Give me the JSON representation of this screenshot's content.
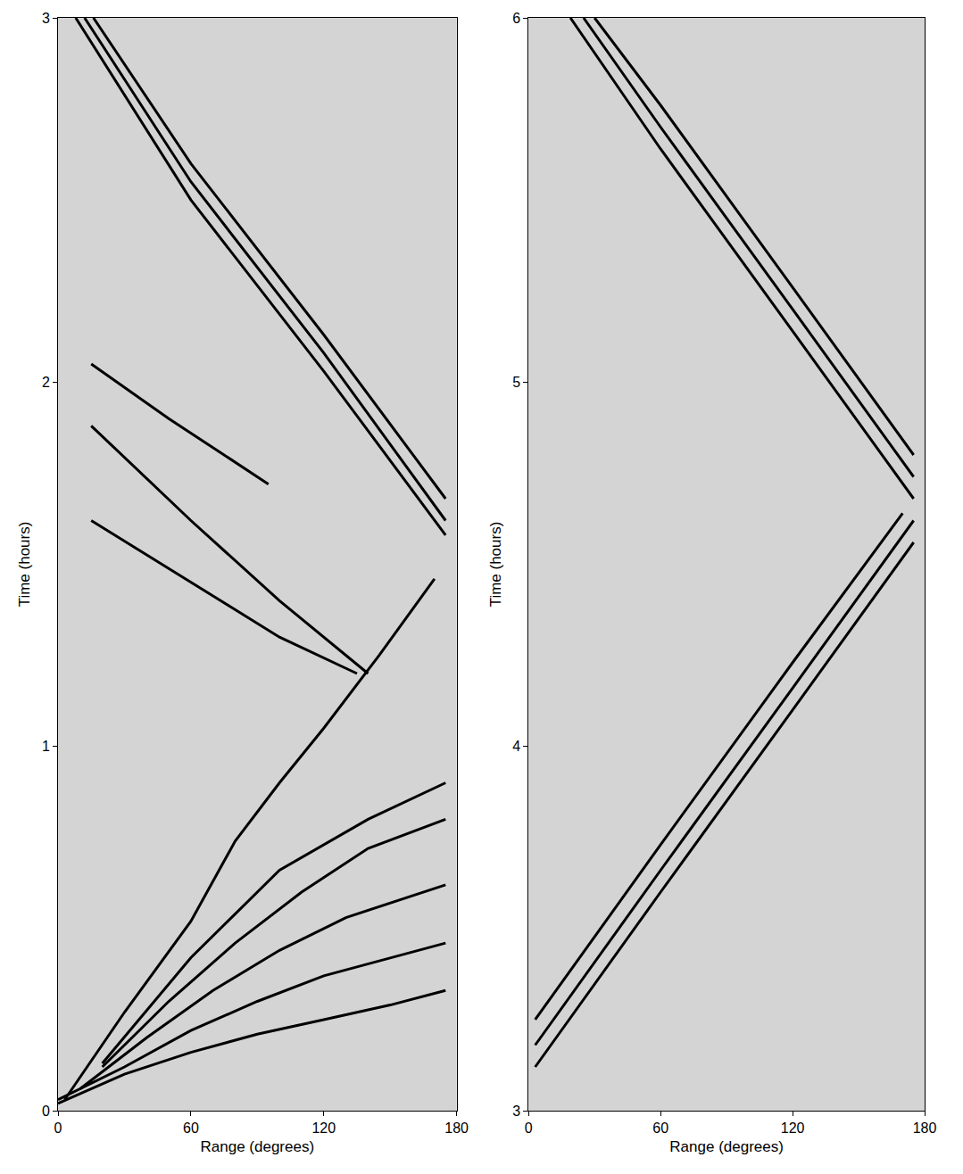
{
  "chart_data": [
    {
      "type": "line",
      "xlabel": "Range (degrees)",
      "ylabel": "Time (hours)",
      "xlim": [
        0,
        180
      ],
      "xticks": [
        0,
        60,
        120,
        180
      ],
      "ylim": [
        0,
        3
      ],
      "yticks": [
        0,
        1,
        2,
        3
      ],
      "grid": false,
      "series": [
        {
          "color": "#000000",
          "x": [
            3,
            30,
            60,
            80,
            100,
            120,
            145,
            170
          ],
          "values": [
            0.03,
            0.27,
            0.52,
            0.74,
            0.9,
            1.05,
            1.25,
            1.46
          ]
        },
        {
          "color": "#000000",
          "x": [
            0,
            30,
            60,
            90,
            120,
            150,
            175
          ],
          "values": [
            0.02,
            0.1,
            0.16,
            0.21,
            0.25,
            0.29,
            0.33
          ]
        },
        {
          "color": "#000000",
          "x": [
            0,
            30,
            60,
            90,
            120,
            150,
            175
          ],
          "values": [
            0.03,
            0.12,
            0.22,
            0.3,
            0.37,
            0.42,
            0.46
          ]
        },
        {
          "color": "#000000",
          "x": [
            10,
            40,
            70,
            100,
            130,
            175
          ],
          "values": [
            0.06,
            0.2,
            0.33,
            0.44,
            0.53,
            0.62
          ]
        },
        {
          "color": "#000000",
          "x": [
            20,
            50,
            80,
            110,
            140,
            175
          ],
          "values": [
            0.12,
            0.3,
            0.46,
            0.6,
            0.72,
            0.8
          ]
        },
        {
          "color": "#000000",
          "x": [
            20,
            60,
            100,
            140,
            175
          ],
          "values": [
            0.13,
            0.42,
            0.66,
            0.8,
            0.9
          ]
        },
        {
          "color": "#000000",
          "x": [
            15,
            60,
            100,
            140
          ],
          "values": [
            1.88,
            1.62,
            1.4,
            1.2
          ]
        },
        {
          "color": "#000000",
          "x": [
            15,
            60,
            100,
            135
          ],
          "values": [
            1.62,
            1.45,
            1.3,
            1.2
          ]
        },
        {
          "color": "#000000",
          "x": [
            15,
            50,
            95
          ],
          "values": [
            2.05,
            1.9,
            1.72
          ]
        },
        {
          "color": "#000000",
          "x": [
            12,
            60,
            120,
            175
          ],
          "values": [
            3.0,
            2.55,
            2.08,
            1.62
          ]
        },
        {
          "color": "#000000",
          "x": [
            8,
            60,
            120,
            175
          ],
          "values": [
            3.0,
            2.5,
            2.03,
            1.58
          ]
        },
        {
          "color": "#000000",
          "x": [
            16,
            60,
            120,
            175
          ],
          "values": [
            3.0,
            2.6,
            2.13,
            1.68
          ]
        }
      ]
    },
    {
      "type": "line",
      "xlabel": "Range (degrees)",
      "ylabel": "Time (hours)",
      "xlim": [
        0,
        180
      ],
      "xticks": [
        0,
        60,
        120,
        180
      ],
      "ylim": [
        3,
        6
      ],
      "yticks": [
        3,
        4,
        5,
        6
      ],
      "grid": false,
      "series": [
        {
          "color": "#000000",
          "x": [
            3,
            60,
            120,
            175
          ],
          "values": [
            3.12,
            3.6,
            4.1,
            4.56
          ]
        },
        {
          "color": "#000000",
          "x": [
            3,
            60,
            120,
            175
          ],
          "values": [
            3.18,
            3.66,
            4.16,
            4.62
          ]
        },
        {
          "color": "#000000",
          "x": [
            3,
            60,
            120,
            170
          ],
          "values": [
            3.25,
            3.73,
            4.23,
            4.64
          ]
        },
        {
          "color": "#000000",
          "x": [
            19,
            60,
            120,
            175
          ],
          "values": [
            6.0,
            5.64,
            5.14,
            4.68
          ]
        },
        {
          "color": "#000000",
          "x": [
            25,
            60,
            120,
            175
          ],
          "values": [
            6.0,
            5.7,
            5.2,
            4.74
          ]
        },
        {
          "color": "#000000",
          "x": [
            30,
            60,
            120,
            175
          ],
          "values": [
            6.0,
            5.76,
            5.26,
            4.8
          ]
        }
      ]
    }
  ]
}
